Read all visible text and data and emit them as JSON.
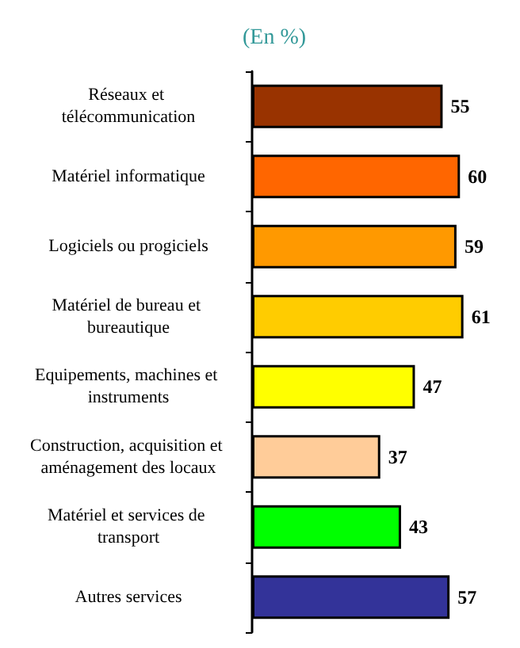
{
  "chart_data": {
    "type": "bar",
    "title": "(En %)",
    "orientation": "horizontal",
    "categories": [
      "Réseaux et télécommunication",
      "Matériel informatique",
      "Logiciels ou progiciels",
      "Matériel de bureau et bureautique",
      "Equipements, machines et instruments",
      "Construction, acquisition et aménagement des locaux",
      "Matériel et services de transport",
      "Autres services"
    ],
    "values": [
      55,
      60,
      59,
      61,
      47,
      37,
      43,
      57
    ],
    "colors": [
      "#993300",
      "#ff6600",
      "#ff9900",
      "#ffcc00",
      "#ffff00",
      "#ffcc99",
      "#00ff00",
      "#333399"
    ],
    "tick_labels": "y",
    "data_labels": true
  }
}
